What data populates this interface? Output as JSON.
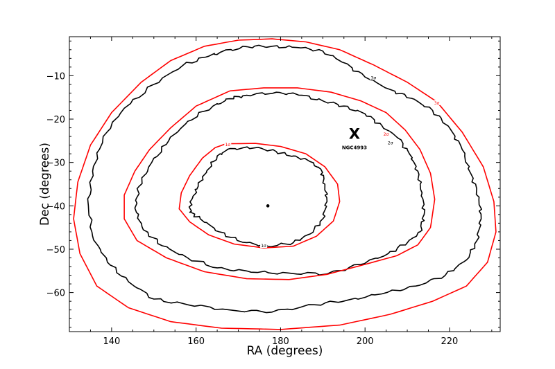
{
  "chart_data": {
    "type": "line",
    "title": "",
    "xlabel": "RA (degrees)",
    "ylabel": "Dec (degrees)",
    "xlim": [
      130,
      232
    ],
    "ylim": [
      -69,
      -1
    ],
    "xticks": [
      140,
      160,
      180,
      200,
      220
    ],
    "yticks": [
      -60,
      -50,
      -40,
      -30,
      -20,
      -10
    ],
    "xtick_labels": [
      "140",
      "160",
      "180",
      "200",
      "220"
    ],
    "ytick_labels": [
      "−60",
      "−50",
      "−40",
      "−30",
      "−20",
      "−10"
    ],
    "grid": false,
    "legend": "none",
    "colors": {
      "measured": "#000000",
      "model": "#ff0000"
    },
    "center": {
      "ra": 177,
      "dec": -40
    },
    "marker": {
      "symbol": "X",
      "name": "NGC4993",
      "ra": 197.5,
      "dec": -23.4
    },
    "contour_labels": [
      {
        "text": "1σ",
        "series_index": 0
      },
      {
        "text": "1σ",
        "series_index": 1
      },
      {
        "text": "2σ",
        "series_index": 2
      },
      {
        "text": "2σ",
        "series_index": 3
      },
      {
        "text": "3σ",
        "series_index": 4
      },
      {
        "text": "3σ",
        "series_index": 5
      }
    ],
    "series": [
      {
        "level": "1σ",
        "kind": "measured",
        "points": [
          [
            168,
            -26.8
          ],
          [
            174,
            -26.6
          ],
          [
            179,
            -27.5
          ],
          [
            183,
            -28.5
          ],
          [
            187,
            -29.8
          ],
          [
            189.5,
            -31.5
          ],
          [
            190.5,
            -35
          ],
          [
            191,
            -39
          ],
          [
            190,
            -43
          ],
          [
            187,
            -46.5
          ],
          [
            183,
            -48.5
          ],
          [
            177,
            -49.3
          ],
          [
            171,
            -48.4
          ],
          [
            165.5,
            -46
          ],
          [
            161,
            -43
          ],
          [
            158.5,
            -41.5
          ],
          [
            159,
            -38.5
          ],
          [
            160.5,
            -35.5
          ],
          [
            162.5,
            -32
          ],
          [
            165,
            -28.5
          ],
          [
            168,
            -26.8
          ]
        ]
      },
      {
        "level": "1σ",
        "kind": "model",
        "points": [
          [
            167,
            -25.7
          ],
          [
            174,
            -25.6
          ],
          [
            180,
            -26.3
          ],
          [
            186,
            -28
          ],
          [
            190.5,
            -31
          ],
          [
            193.5,
            -35
          ],
          [
            194,
            -39
          ],
          [
            192.5,
            -43.5
          ],
          [
            188.5,
            -47
          ],
          [
            183,
            -49.3
          ],
          [
            176,
            -49.7
          ],
          [
            169,
            -48.8
          ],
          [
            163,
            -46.7
          ],
          [
            158.5,
            -43.7
          ],
          [
            156,
            -40.7
          ],
          [
            156.5,
            -37
          ],
          [
            158.5,
            -33
          ],
          [
            161.5,
            -29
          ],
          [
            164.5,
            -26.6
          ],
          [
            167,
            -25.7
          ]
        ]
      },
      {
        "level": "2σ",
        "kind": "measured",
        "points": [
          [
            172,
            -14.5
          ],
          [
            179,
            -13.8
          ],
          [
            185,
            -14.5
          ],
          [
            190,
            -15.8
          ],
          [
            195,
            -17
          ],
          [
            200,
            -18.8
          ],
          [
            204,
            -21.5
          ],
          [
            208,
            -24.5
          ],
          [
            210.5,
            -28
          ],
          [
            212.5,
            -32
          ],
          [
            213.5,
            -37
          ],
          [
            214,
            -42
          ],
          [
            213,
            -46
          ],
          [
            210,
            -48.5
          ],
          [
            205.5,
            -51
          ],
          [
            199,
            -53.5
          ],
          [
            191,
            -55.7
          ],
          [
            182,
            -55.5
          ],
          [
            173,
            -55.3
          ],
          [
            165,
            -54.3
          ],
          [
            158,
            -52
          ],
          [
            152,
            -49.2
          ],
          [
            147.5,
            -45.5
          ],
          [
            145.5,
            -40.5
          ],
          [
            146.5,
            -35.5
          ],
          [
            149.5,
            -30
          ],
          [
            153.5,
            -25
          ],
          [
            158,
            -20.5
          ],
          [
            164,
            -17
          ],
          [
            168,
            -15.3
          ],
          [
            172,
            -14.5
          ]
        ]
      },
      {
        "level": "2σ",
        "kind": "model",
        "points": [
          [
            168,
            -13.5
          ],
          [
            176,
            -12.8
          ],
          [
            184,
            -12.8
          ],
          [
            192,
            -13.8
          ],
          [
            199,
            -15.8
          ],
          [
            205,
            -18.5
          ],
          [
            209.5,
            -22.5
          ],
          [
            213,
            -27
          ],
          [
            215.5,
            -32.5
          ],
          [
            216.5,
            -38.5
          ],
          [
            215.5,
            -45
          ],
          [
            212.5,
            -49
          ],
          [
            207.5,
            -51.5
          ],
          [
            200,
            -53.5
          ],
          [
            191,
            -55.8
          ],
          [
            182,
            -57
          ],
          [
            172,
            -56.8
          ],
          [
            162,
            -55.2
          ],
          [
            153,
            -52
          ],
          [
            146,
            -48
          ],
          [
            143,
            -43
          ],
          [
            143,
            -37.5
          ],
          [
            145.5,
            -32
          ],
          [
            149,
            -27
          ],
          [
            154,
            -22
          ],
          [
            160,
            -17
          ],
          [
            168,
            -13.5
          ]
        ]
      },
      {
        "level": "3σ",
        "kind": "measured",
        "points": [
          [
            166,
            -4.5
          ],
          [
            172,
            -3.3
          ],
          [
            178,
            -3.2
          ],
          [
            184,
            -3.5
          ],
          [
            190,
            -4.3
          ],
          [
            195,
            -7
          ],
          [
            200,
            -10.3
          ],
          [
            206,
            -13.2
          ],
          [
            211,
            -15.2
          ],
          [
            216,
            -18
          ],
          [
            220,
            -22
          ],
          [
            223,
            -27
          ],
          [
            225,
            -32.5
          ],
          [
            227,
            -38
          ],
          [
            227.5,
            -43
          ],
          [
            226.5,
            -48
          ],
          [
            224,
            -52.5
          ],
          [
            219,
            -56
          ],
          [
            212,
            -58.5
          ],
          [
            204,
            -60.3
          ],
          [
            196,
            -61.7
          ],
          [
            188,
            -62.8
          ],
          [
            178,
            -64.5
          ],
          [
            168,
            -64
          ],
          [
            158,
            -62.8
          ],
          [
            150,
            -61.5
          ],
          [
            144,
            -57.5
          ],
          [
            139,
            -53
          ],
          [
            135.5,
            -47
          ],
          [
            134.5,
            -40
          ],
          [
            135.5,
            -32
          ],
          [
            138,
            -24
          ],
          [
            143,
            -17.5
          ],
          [
            150,
            -12
          ],
          [
            157,
            -7.5
          ],
          [
            163,
            -5.5
          ],
          [
            166,
            -4.5
          ]
        ]
      },
      {
        "level": "3σ",
        "kind": "model",
        "points": [
          [
            162,
            -3.2
          ],
          [
            170,
            -1.8
          ],
          [
            178,
            -1.5
          ],
          [
            186,
            -2.2
          ],
          [
            194,
            -4
          ],
          [
            202,
            -7.5
          ],
          [
            210,
            -11.5
          ],
          [
            217,
            -16
          ],
          [
            223,
            -23
          ],
          [
            228,
            -31
          ],
          [
            230.5,
            -39
          ],
          [
            231,
            -46
          ],
          [
            229,
            -53
          ],
          [
            224,
            -58.5
          ],
          [
            216,
            -62
          ],
          [
            206,
            -65
          ],
          [
            194,
            -67.5
          ],
          [
            180,
            -68.5
          ],
          [
            166,
            -68.2
          ],
          [
            154,
            -66.7
          ],
          [
            144,
            -63.5
          ],
          [
            136.5,
            -58.5
          ],
          [
            132.5,
            -51
          ],
          [
            131,
            -43
          ],
          [
            132,
            -34.5
          ],
          [
            135,
            -26
          ],
          [
            140,
            -18.5
          ],
          [
            147,
            -11.5
          ],
          [
            154,
            -6.5
          ],
          [
            162,
            -3.2
          ]
        ]
      }
    ]
  }
}
